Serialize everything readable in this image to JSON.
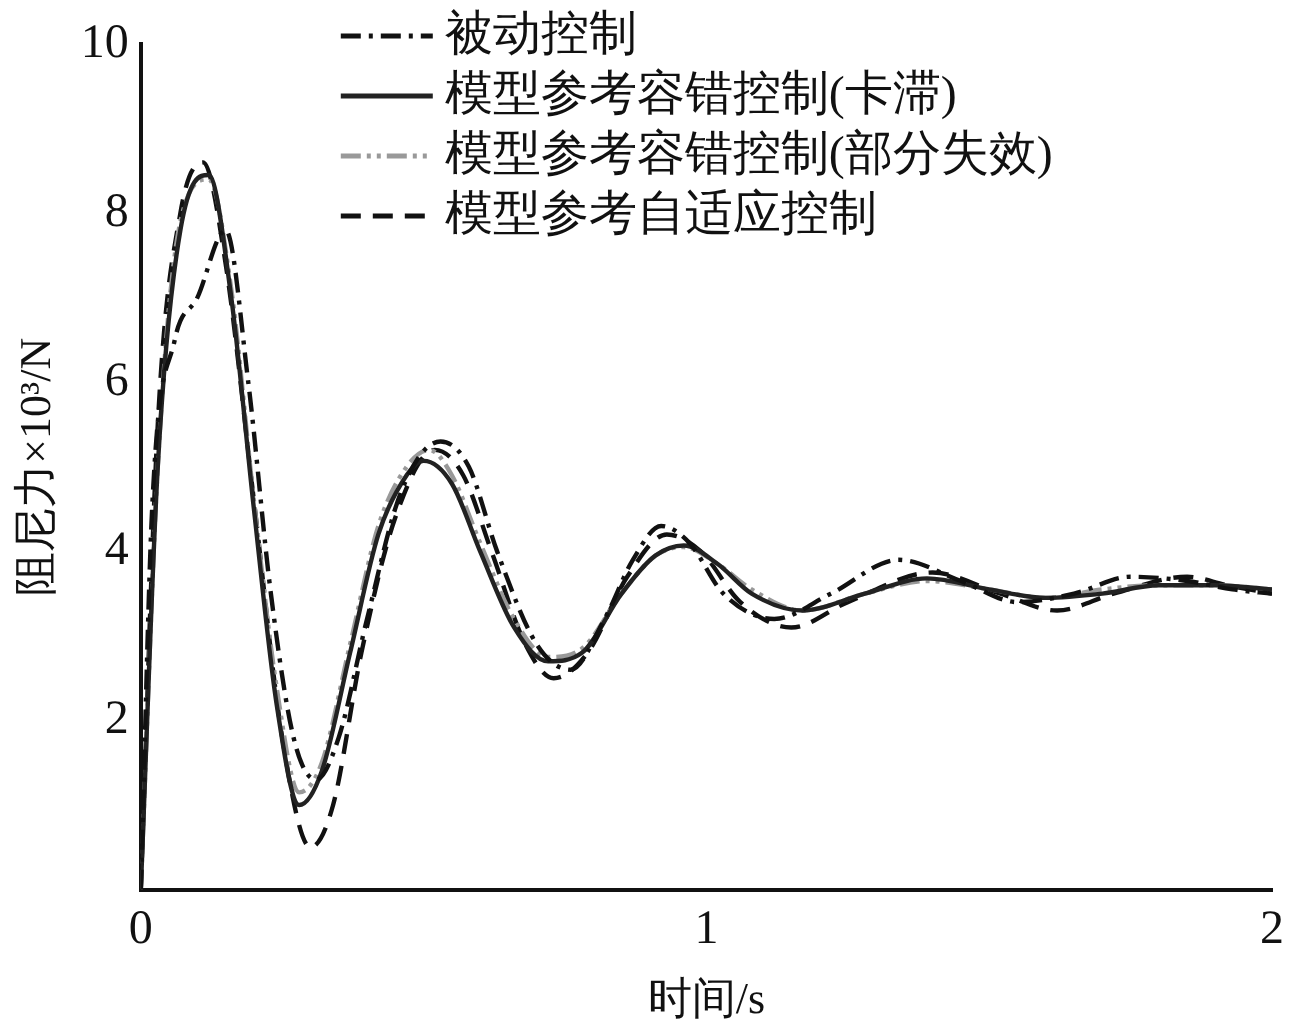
{
  "chart_data": {
    "type": "line",
    "xlabel": "时间/s",
    "ylabel": "阻尼力×10³/N",
    "xlim": [
      0,
      2
    ],
    "xticks": [
      0,
      1,
      2
    ],
    "ylim": [
      0,
      10
    ],
    "yticks": [
      2,
      4,
      6,
      8,
      10
    ],
    "grid": false,
    "legend": "top",
    "marker": "none",
    "series": [
      {
        "name": "被动控制",
        "color": "#111111",
        "line_style": "dashdot",
        "x": [
          0,
          0.02,
          0.06,
          0.1,
          0.15,
          0.19,
          0.23,
          0.27,
          0.31,
          0.35,
          0.4,
          0.46,
          0.53,
          0.58,
          0.63,
          0.7,
          0.76,
          0.82,
          0.87,
          0.92,
          0.97,
          1.03,
          1.12,
          1.22,
          1.34,
          1.45,
          1.55,
          1.65,
          1.75,
          1.85,
          1.93,
          2.0
        ],
        "values": [
          0,
          4.5,
          6.5,
          7.0,
          7.8,
          6.0,
          3.5,
          1.8,
          1.3,
          1.8,
          3.2,
          4.7,
          5.3,
          5.0,
          4.0,
          2.9,
          2.6,
          3.2,
          3.9,
          4.3,
          4.1,
          3.5,
          3.2,
          3.5,
          3.9,
          3.65,
          3.4,
          3.5,
          3.7,
          3.65,
          3.55,
          3.5
        ]
      },
      {
        "name": "模型参考容错控制(卡滞)",
        "color": "#222222",
        "line_style": "solid",
        "x": [
          0,
          0.03,
          0.07,
          0.12,
          0.16,
          0.2,
          0.24,
          0.28,
          0.32,
          0.37,
          0.42,
          0.47,
          0.5,
          0.55,
          0.6,
          0.66,
          0.72,
          0.78,
          0.85,
          0.91,
          0.96,
          1.02,
          1.08,
          1.17,
          1.28,
          1.39,
          1.5,
          1.6,
          1.7,
          1.8,
          1.9,
          2.0
        ],
        "values": [
          0,
          5.0,
          7.8,
          8.45,
          7.0,
          4.5,
          2.2,
          1.0,
          1.4,
          2.8,
          4.2,
          4.9,
          5.07,
          4.8,
          4.0,
          3.1,
          2.7,
          2.8,
          3.5,
          3.95,
          4.07,
          3.85,
          3.5,
          3.3,
          3.5,
          3.68,
          3.55,
          3.45,
          3.5,
          3.6,
          3.6,
          3.55
        ]
      },
      {
        "name": "模型参考容错控制(部分失效)",
        "color": "#999999",
        "line_style": "dashdotdot",
        "x": [
          0,
          0.03,
          0.07,
          0.12,
          0.16,
          0.2,
          0.24,
          0.28,
          0.32,
          0.37,
          0.42,
          0.47,
          0.51,
          0.55,
          0.6,
          0.66,
          0.72,
          0.78,
          0.85,
          0.91,
          0.96,
          1.02,
          1.08,
          1.17,
          1.28,
          1.39,
          1.5,
          1.6,
          1.7,
          1.8,
          1.9,
          2.0
        ],
        "values": [
          0,
          5.0,
          7.9,
          8.4,
          7.1,
          4.6,
          2.4,
          1.15,
          1.5,
          2.9,
          4.3,
          5.0,
          5.2,
          4.9,
          4.1,
          3.2,
          2.75,
          2.85,
          3.5,
          3.95,
          4.05,
          3.85,
          3.55,
          3.3,
          3.5,
          3.65,
          3.55,
          3.45,
          3.55,
          3.6,
          3.6,
          3.55
        ]
      },
      {
        "name": "模型参考自适应控制",
        "color": "#111111",
        "line_style": "dashed",
        "x": [
          0,
          0.03,
          0.07,
          0.11,
          0.15,
          0.2,
          0.25,
          0.3,
          0.34,
          0.39,
          0.45,
          0.52,
          0.57,
          0.62,
          0.68,
          0.73,
          0.79,
          0.86,
          0.93,
          0.99,
          1.06,
          1.15,
          1.25,
          1.4,
          1.52,
          1.62,
          1.72,
          1.85,
          1.92,
          2.0
        ],
        "values": [
          0,
          5.5,
          8.0,
          8.6,
          7.4,
          4.6,
          1.8,
          0.5,
          1.0,
          2.8,
          4.4,
          5.2,
          4.9,
          4.0,
          2.9,
          2.5,
          2.8,
          3.7,
          4.2,
          4.0,
          3.4,
          3.1,
          3.4,
          3.75,
          3.5,
          3.3,
          3.5,
          3.7,
          3.6,
          3.5
        ]
      }
    ]
  }
}
